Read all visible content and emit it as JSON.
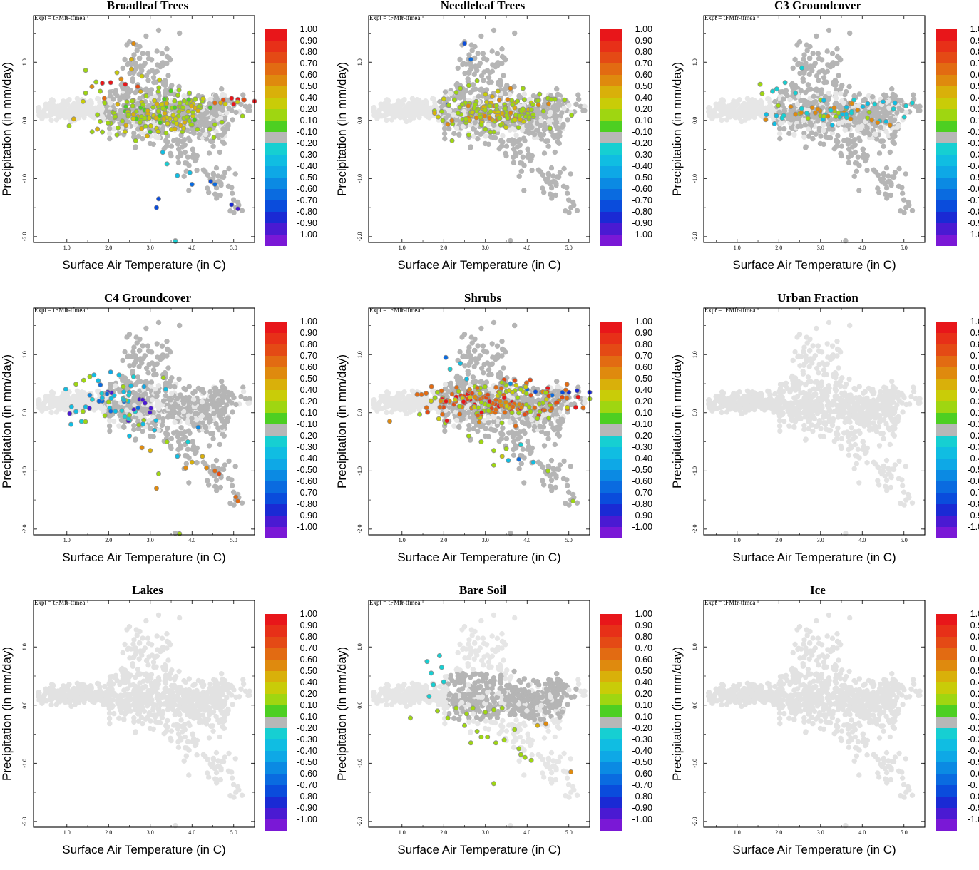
{
  "figure": {
    "expt_label": "Expt = tFMfr-tfmea",
    "xlabel": "Surface Air Temperature (in C)",
    "ylabel": "Precipitation (in mm/day)"
  },
  "chart_data": {
    "type": "scatter",
    "xlim": [
      0.2,
      5.5
    ],
    "ylim": [
      -2.1,
      1.8
    ],
    "xticks": [
      "1.0",
      "2.0",
      "3.0",
      "4.0",
      "5.0"
    ],
    "xtick_values": [
      1.0,
      2.0,
      3.0,
      4.0,
      5.0
    ],
    "yticks": [
      "1.0",
      "0.0",
      "-1.0",
      "-2.0"
    ],
    "ytick_values": [
      1.0,
      0.0,
      -1.0,
      -2.0
    ],
    "colorbar": {
      "labels": [
        "1.00",
        "0.90",
        "0.80",
        "0.70",
        "0.60",
        "0.50",
        "0.40",
        "0.20",
        "0.10",
        "-0.10",
        "-0.20",
        "-0.30",
        "-0.40",
        "-0.50",
        "-0.60",
        "-0.70",
        "-0.80",
        "-0.90",
        "-1.00"
      ],
      "colors": [
        "#e8161a",
        "#e73018",
        "#e44a15",
        "#e26b12",
        "#df8a0e",
        "#d9b00a",
        "#c9cc08",
        "#9fd611",
        "#4dcf22",
        "#b7b7b7",
        "#16cfd2",
        "#10bde2",
        "#0ea8e6",
        "#0b8ae3",
        "#0a6be0",
        "#0a4cdc",
        "#1a2ad4",
        "#4a1ad2",
        "#7a18d6"
      ]
    },
    "panels": [
      {
        "title": "Broadleaf Trees",
        "pattern": "broadleaf",
        "active": true,
        "highlight": [
          [
            1.45,
            0.86,
            0.15
          ],
          [
            1.45,
            0.47,
            0.15
          ],
          [
            1.6,
            0.58,
            0.6
          ],
          [
            1.7,
            0.66,
            0.15
          ],
          [
            1.8,
            0.5,
            0.2
          ],
          [
            1.85,
            0.64,
            0.9
          ],
          [
            1.9,
            0.38,
            0.7
          ],
          [
            2.05,
            0.65,
            0.9
          ],
          [
            2.1,
            0.14,
            0.2
          ],
          [
            2.2,
            0.82,
            0.3
          ],
          [
            2.3,
            0.71,
            0.6
          ],
          [
            2.4,
            0.62,
            0.9
          ],
          [
            2.55,
            1.05,
            0.5
          ],
          [
            2.6,
            1.32,
            0.6
          ],
          [
            2.55,
            0.88,
            0.5
          ],
          [
            2.7,
            0.58,
            0.8
          ],
          [
            2.8,
            0.76,
            0.4
          ],
          [
            2.9,
            0.43,
            0.2
          ],
          [
            3.1,
            0.34,
            0.3
          ],
          [
            3.2,
            0.23,
            0.15
          ],
          [
            1.85,
            -0.2,
            0.15
          ],
          [
            2.05,
            -0.05,
            0.15
          ],
          [
            2.2,
            -0.25,
            0.15
          ],
          [
            2.65,
            -0.35,
            0.15
          ],
          [
            3.3,
            -0.55,
            -0.3
          ],
          [
            3.4,
            -0.75,
            -0.2
          ],
          [
            3.65,
            -0.95,
            -0.25
          ],
          [
            3.95,
            -0.9,
            -0.3
          ],
          [
            4.0,
            -1.1,
            -0.55
          ],
          [
            4.45,
            -1.05,
            -0.65
          ],
          [
            4.55,
            -1.1,
            -0.6
          ],
          [
            3.2,
            -1.35,
            -0.65
          ],
          [
            3.15,
            -1.5,
            -0.7
          ],
          [
            4.95,
            -1.45,
            -0.8
          ],
          [
            5.1,
            -1.52,
            -0.85
          ],
          [
            4.55,
            0.3,
            0.7
          ],
          [
            4.75,
            0.35,
            0.8
          ],
          [
            4.95,
            0.38,
            0.9
          ],
          [
            5.1,
            0.36,
            0.9
          ],
          [
            5.25,
            0.35,
            0.8
          ],
          [
            5.5,
            0.33,
            0.9
          ],
          [
            5.0,
            0.28,
            0.9
          ],
          [
            4.2,
            0.22,
            0.2
          ],
          [
            3.6,
            -2.08,
            -0.2
          ]
        ],
        "cluster": {
          "cx": 3.2,
          "cy": 0.12,
          "sx": 0.75,
          "sy": 0.18,
          "n": 160,
          "vals": [
            0.1,
            0.15,
            0.2,
            0.15,
            0.4,
            0.5
          ]
        }
      },
      {
        "title": "Needleleaf Trees",
        "pattern": "needleleaf",
        "active": true,
        "highlight": [
          [
            2.5,
            1.32,
            -0.65
          ],
          [
            2.65,
            1.05,
            -0.6
          ],
          [
            2.3,
            0.48,
            0.15
          ],
          [
            2.4,
            0.55,
            0.2
          ],
          [
            2.6,
            0.6,
            0.2
          ],
          [
            2.8,
            0.68,
            0.2
          ],
          [
            2.0,
            0.37,
            0.3
          ],
          [
            2.1,
            0.27,
            -0.55
          ],
          [
            3.0,
            0.45,
            0.3
          ],
          [
            3.3,
            0.5,
            0.4
          ],
          [
            3.6,
            0.55,
            0.6
          ],
          [
            3.9,
            0.55,
            0.2
          ],
          [
            4.3,
            0.45,
            0.2
          ],
          [
            4.5,
            0.38,
            0.15
          ],
          [
            4.9,
            0.35,
            0.15
          ],
          [
            4.1,
            0.3,
            0.4
          ],
          [
            2.2,
            -0.35,
            0.15
          ],
          [
            2.6,
            -0.25,
            0.15
          ],
          [
            3.2,
            -0.2,
            0.15
          ],
          [
            3.0,
            -0.15,
            0.15
          ]
        ],
        "cluster": {
          "cx": 3.3,
          "cy": 0.12,
          "sx": 0.7,
          "sy": 0.13,
          "n": 140,
          "vals": [
            0.15,
            0.2,
            0.4,
            0.5,
            0.6,
            0.15
          ]
        }
      },
      {
        "title": "C3 Groundcover",
        "pattern": "c3",
        "active": true,
        "highlight": [
          [
            1.55,
            0.62,
            0.2
          ],
          [
            1.6,
            0.46,
            0.15
          ],
          [
            1.85,
            0.5,
            -0.2
          ],
          [
            1.95,
            0.54,
            -0.2
          ],
          [
            2.15,
            0.65,
            -0.2
          ],
          [
            2.4,
            0.47,
            -0.2
          ],
          [
            2.55,
            0.9,
            -0.2
          ],
          [
            3.8,
            0.35,
            -0.2
          ],
          [
            4.3,
            0.28,
            -0.2
          ],
          [
            4.5,
            0.32,
            -0.25
          ],
          [
            4.75,
            0.2,
            -0.2
          ],
          [
            5.05,
            0.25,
            -0.2
          ],
          [
            5.2,
            0.3,
            -0.2
          ],
          [
            3.0,
            0.35,
            0.2
          ],
          [
            2.8,
            0.22,
            0.6
          ],
          [
            3.3,
            0.18,
            0.6
          ],
          [
            3.0,
            0.08,
            0.15
          ],
          [
            2.5,
            0.12,
            0.15
          ],
          [
            1.7,
            0.1,
            -0.25
          ]
        ],
        "cluster": {
          "cx": 3.2,
          "cy": 0.1,
          "sx": 0.9,
          "sy": 0.1,
          "n": 55,
          "vals": [
            -0.2,
            0.15,
            0.2,
            0.6,
            -0.25
          ]
        }
      },
      {
        "title": "C4 Groundcover",
        "pattern": "c4",
        "active": true,
        "highlight": [
          [
            1.1,
            -0.2,
            -0.3
          ],
          [
            1.35,
            -0.15,
            -0.2
          ],
          [
            1.45,
            0.1,
            -0.3
          ],
          [
            1.55,
            0.3,
            -0.45
          ],
          [
            1.65,
            0.65,
            -0.25
          ],
          [
            1.75,
            0.55,
            -0.3
          ],
          [
            1.85,
            0.2,
            -0.55
          ],
          [
            2.05,
            0.7,
            -0.4
          ],
          [
            2.25,
            0.65,
            -0.25
          ],
          [
            2.35,
            0.45,
            0.2
          ],
          [
            2.6,
            0.62,
            -0.2
          ],
          [
            2.85,
            0.45,
            -0.4
          ],
          [
            3.1,
            -0.3,
            -0.3
          ],
          [
            3.4,
            -0.5,
            0.2
          ],
          [
            3.65,
            -0.75,
            -0.25
          ],
          [
            3.9,
            -0.5,
            -0.2
          ],
          [
            3.2,
            -1.05,
            0.2
          ],
          [
            3.15,
            -1.3,
            0.6
          ],
          [
            4.0,
            -0.85,
            0.5
          ],
          [
            4.25,
            -0.75,
            0.5
          ],
          [
            3.85,
            -0.95,
            0.6
          ],
          [
            4.35,
            -0.95,
            0.55
          ],
          [
            4.55,
            -1.0,
            0.7
          ],
          [
            4.65,
            -1.05,
            0.75
          ],
          [
            5.05,
            -1.45,
            0.7
          ],
          [
            5.1,
            -1.52,
            0.65
          ],
          [
            3.7,
            -2.08,
            0.15
          ],
          [
            4.15,
            -0.25,
            -0.5
          ],
          [
            2.8,
            -0.6,
            0.55
          ],
          [
            3.0,
            -0.65,
            0.5
          ],
          [
            2.5,
            -0.4,
            -0.25
          ]
        ],
        "cluster": {
          "cx": 2.3,
          "cy": 0.15,
          "sx": 0.6,
          "sy": 0.2,
          "n": 55,
          "vals": [
            -0.3,
            -0.55,
            -0.2,
            0.2,
            0.15,
            -0.85
          ]
        }
      },
      {
        "title": "Shrubs",
        "pattern": "shrubs",
        "active": true,
        "highlight": [
          [
            2.05,
            0.95,
            -0.55
          ],
          [
            2.15,
            0.75,
            -0.2
          ],
          [
            2.4,
            0.85,
            -0.3
          ],
          [
            2.55,
            0.58,
            -0.3
          ],
          [
            2.75,
            0.45,
            0.2
          ],
          [
            1.85,
            0.35,
            0.2
          ],
          [
            1.7,
            0.2,
            0.4
          ],
          [
            2.0,
            0.18,
            0.8
          ],
          [
            2.3,
            0.22,
            0.7
          ],
          [
            3.6,
            0.5,
            -0.5
          ],
          [
            3.85,
            0.42,
            -0.3
          ],
          [
            4.0,
            0.4,
            -0.6
          ],
          [
            4.2,
            0.36,
            -0.7
          ],
          [
            4.45,
            0.35,
            -0.6
          ],
          [
            4.6,
            0.3,
            -0.6
          ],
          [
            4.85,
            0.35,
            -0.7
          ],
          [
            5.0,
            0.35,
            -0.8
          ],
          [
            5.2,
            0.38,
            -0.75
          ],
          [
            5.5,
            0.35,
            -0.8
          ],
          [
            4.35,
            0.35,
            -0.5
          ],
          [
            3.85,
            -0.55,
            -0.2
          ],
          [
            3.5,
            -0.62,
            0.2
          ],
          [
            3.4,
            -0.75,
            0.4
          ],
          [
            3.2,
            -0.65,
            0.15
          ],
          [
            3.55,
            -0.82,
            -0.3
          ],
          [
            3.8,
            -0.8,
            -0.6
          ],
          [
            4.5,
            -1.0,
            0.2
          ],
          [
            5.1,
            -1.52,
            0.15
          ],
          [
            4.15,
            -0.85,
            -0.3
          ],
          [
            3.2,
            -0.9,
            0.2
          ],
          [
            2.6,
            -0.4,
            0.15
          ],
          [
            2.9,
            -0.5,
            0.2
          ]
        ],
        "cluster": {
          "cx": 3.3,
          "cy": 0.18,
          "sx": 0.9,
          "sy": 0.18,
          "n": 190,
          "vals": [
            0.7,
            0.8,
            0.6,
            0.2,
            0.15,
            0.4,
            0.9,
            0.7
          ]
        }
      },
      {
        "title": "Urban Fraction",
        "pattern": "inactive",
        "active": false,
        "highlight": [],
        "cluster": null
      },
      {
        "title": "Lakes",
        "pattern": "inactive",
        "active": false,
        "highlight": [],
        "cluster": null
      },
      {
        "title": "Bare Soil",
        "pattern": "baresoil",
        "active": true,
        "highlight": [
          [
            1.6,
            0.75,
            -0.2
          ],
          [
            1.7,
            0.55,
            -0.2
          ],
          [
            1.75,
            0.35,
            -0.2
          ],
          [
            1.65,
            0.15,
            -0.2
          ],
          [
            1.9,
            0.85,
            -0.2
          ],
          [
            1.95,
            0.65,
            -0.2
          ],
          [
            2.0,
            0.4,
            -0.2
          ],
          [
            1.2,
            -0.22,
            0.2
          ],
          [
            1.85,
            -0.1,
            0.2
          ],
          [
            2.1,
            -0.22,
            0.2
          ],
          [
            2.3,
            -0.05,
            0.15
          ],
          [
            2.5,
            -0.35,
            0.2
          ],
          [
            2.55,
            -0.15,
            0.15
          ],
          [
            2.7,
            -0.05,
            0.2
          ],
          [
            3.0,
            -0.12,
            0.2
          ],
          [
            3.2,
            -0.08,
            0.15
          ],
          [
            3.4,
            -0.05,
            0.2
          ],
          [
            2.8,
            -0.45,
            0.2
          ],
          [
            2.9,
            -0.55,
            0.15
          ],
          [
            3.05,
            -0.55,
            0.2
          ],
          [
            3.25,
            -0.65,
            0.2
          ],
          [
            3.45,
            -0.6,
            0.15
          ],
          [
            3.7,
            -0.42,
            0.2
          ],
          [
            3.85,
            -0.85,
            0.15
          ],
          [
            3.95,
            -0.9,
            0.2
          ],
          [
            4.1,
            -0.95,
            0.2
          ],
          [
            3.2,
            -1.35,
            0.15
          ],
          [
            4.25,
            -0.35,
            0.5
          ],
          [
            4.45,
            -0.32,
            0.6
          ],
          [
            5.05,
            -1.15,
            0.6
          ],
          [
            3.8,
            -0.75,
            0.2
          ],
          [
            2.65,
            -0.65,
            0.2
          ]
        ],
        "cluster": null
      },
      {
        "title": "Ice",
        "pattern": "inactive",
        "active": false,
        "highlight": [],
        "cluster": null
      }
    ]
  }
}
